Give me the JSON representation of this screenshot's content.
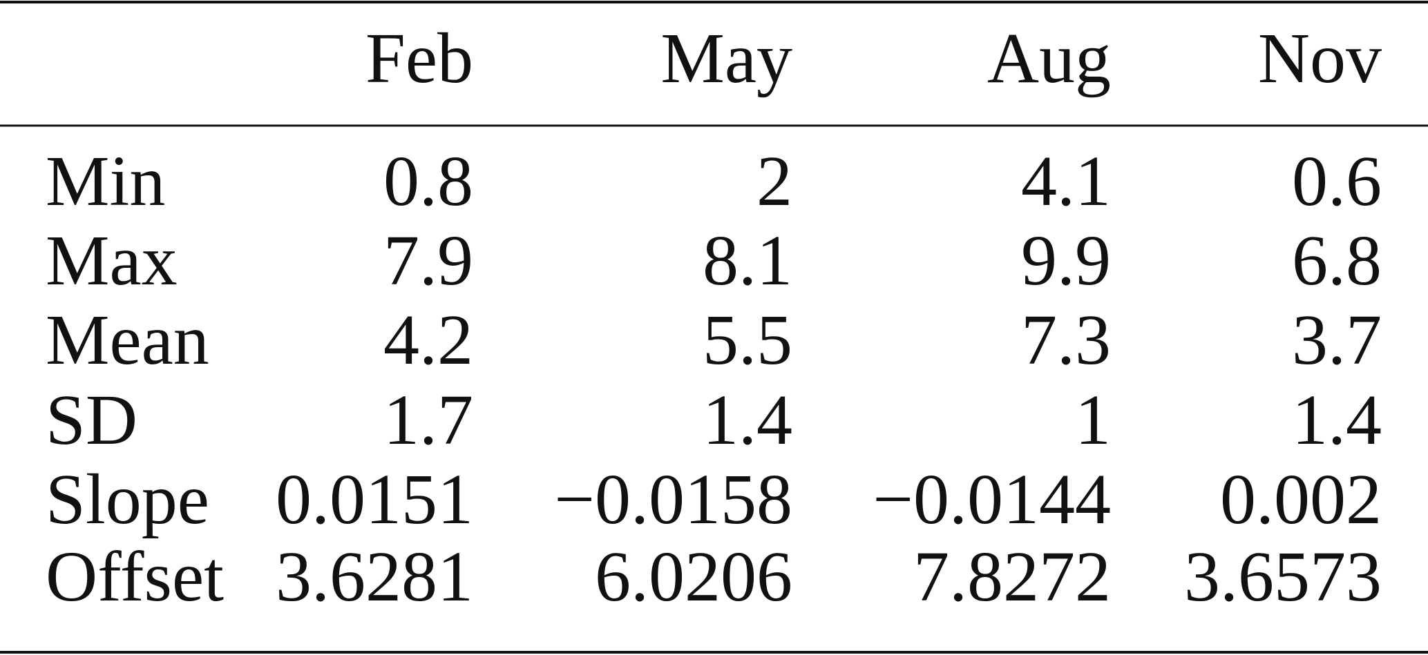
{
  "table": {
    "columns": [
      "Feb",
      "May",
      "Aug",
      "Nov"
    ],
    "rows": [
      [
        "Min",
        "0.8",
        "2",
        "4.1",
        "0.6"
      ],
      [
        "Max",
        "7.9",
        "8.1",
        "9.9",
        "6.8"
      ],
      [
        "Mean",
        "4.2",
        "5.5",
        "7.3",
        "3.7"
      ],
      [
        "SD",
        "1.7",
        "1.4",
        "1",
        "1.4"
      ],
      [
        "Slope",
        "0.0151",
        "−0.0158",
        "−0.0144",
        "0.002"
      ],
      [
        "Offset",
        "3.6281",
        "6.0206",
        "7.8272",
        "3.6573"
      ]
    ]
  }
}
